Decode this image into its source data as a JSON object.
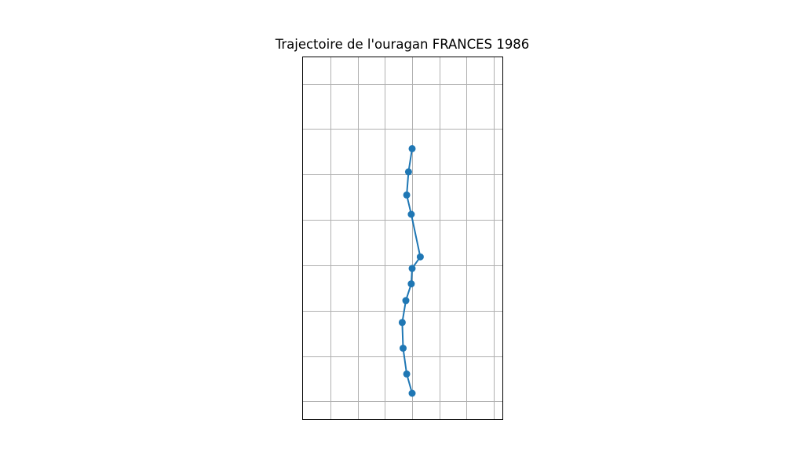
{
  "chart_data": {
    "type": "line",
    "title": "Trajectoire de l'ouragan FRANCES 1986",
    "xlabel": "",
    "ylabel": "",
    "grid": true,
    "axis_ticks_labeled": false,
    "marker": "circle",
    "series": [
      {
        "color": "#1f77b4",
        "points": [
          {
            "x": 0.0,
            "y": -5.0
          },
          {
            "x": -0.6,
            "y": -3.5
          },
          {
            "x": -1.0,
            "y": -1.5
          },
          {
            "x": -1.1,
            "y": 0.5
          },
          {
            "x": -0.7,
            "y": 2.2
          },
          {
            "x": -0.1,
            "y": 3.5
          },
          {
            "x": 0.0,
            "y": 4.7
          },
          {
            "x": 0.9,
            "y": 5.6
          },
          {
            "x": -0.1,
            "y": 8.9
          },
          {
            "x": -0.6,
            "y": 10.4
          },
          {
            "x": -0.4,
            "y": 12.2
          },
          {
            "x": 0.0,
            "y": 14.0
          }
        ]
      }
    ]
  }
}
